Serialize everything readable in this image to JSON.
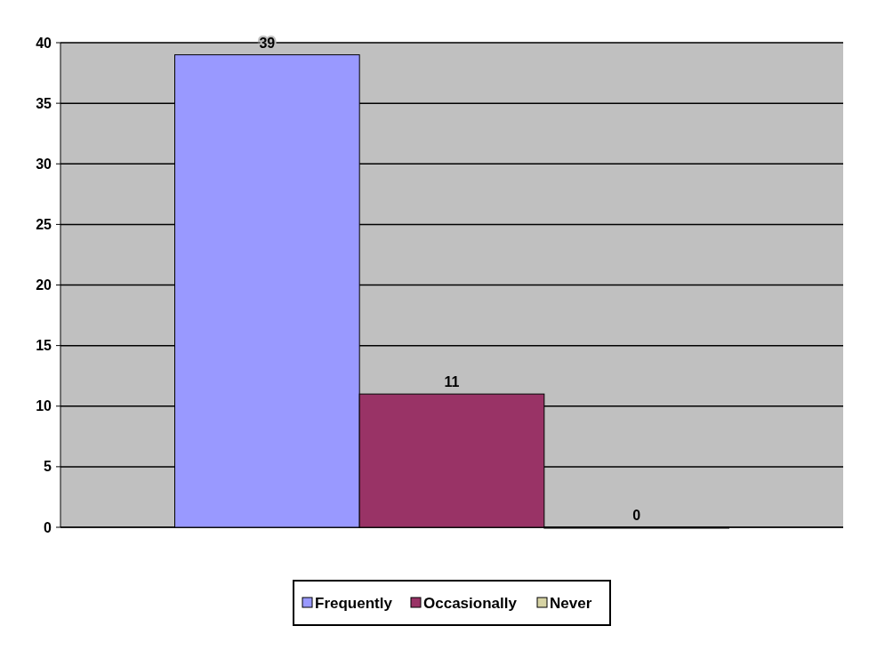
{
  "chart_data": {
    "type": "bar",
    "categories": [
      null
    ],
    "series": [
      {
        "name": "Frequently",
        "color": "#9999ff",
        "values": [
          39
        ]
      },
      {
        "name": "Occasionally",
        "color": "#993366",
        "values": [
          11
        ]
      },
      {
        "name": "Never",
        "color": "#d6d3a4",
        "values": [
          0
        ]
      }
    ],
    "ylim": [
      0,
      40
    ],
    "yticks": [
      0,
      5,
      10,
      15,
      20,
      25,
      30,
      35,
      40
    ],
    "grid": "y",
    "legend": "bottom",
    "data_labels": true
  }
}
